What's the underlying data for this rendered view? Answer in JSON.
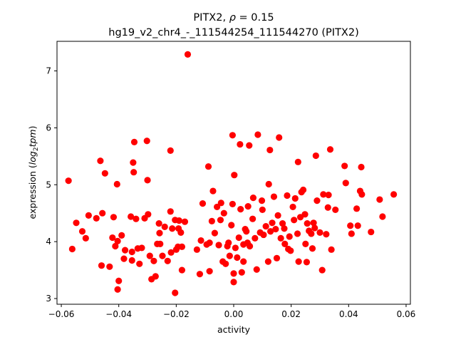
{
  "chart_data": {
    "type": "scatter",
    "title_main": "PITX2, ",
    "title_rho_symbol": "ρ",
    "title_rho_value": " = 0.15",
    "subtitle": "hg19_v2_chr4_-_111544254_111544270 (PITX2)",
    "xlabel": "activity",
    "ylabel_prefix": "expression (",
    "ylabel_log": "log",
    "ylabel_sub": "2",
    "ylabel_tpm": "tpm",
    "ylabel_suffix": ")",
    "xlim": [
      -0.0615,
      0.0615
    ],
    "ylim": [
      2.9,
      7.52
    ],
    "xticks": [
      -0.06,
      -0.04,
      -0.02,
      0.0,
      0.02,
      0.04,
      0.06
    ],
    "xtick_labels": [
      "−0.06",
      "−0.04",
      "−0.02",
      "0.00",
      "0.02",
      "0.04",
      "0.06"
    ],
    "yticks": [
      3,
      4,
      5,
      6,
      7
    ],
    "ytick_labels": [
      "3",
      "4",
      "5",
      "6",
      "7"
    ],
    "grid": false,
    "marker_color": "#ff0000",
    "points": [
      [
        -0.0575,
        5.07
      ],
      [
        -0.0562,
        3.87
      ],
      [
        -0.0548,
        4.33
      ],
      [
        -0.0527,
        4.18
      ],
      [
        -0.0515,
        4.06
      ],
      [
        -0.0505,
        4.46
      ],
      [
        -0.0478,
        4.41
      ],
      [
        -0.0464,
        5.42
      ],
      [
        -0.046,
        3.58
      ],
      [
        -0.0457,
        4.5
      ],
      [
        -0.0448,
        5.2
      ],
      [
        -0.0432,
        3.56
      ],
      [
        -0.0422,
        4.07
      ],
      [
        -0.0418,
        4.43
      ],
      [
        -0.0412,
        3.92
      ],
      [
        -0.0406,
        5.01
      ],
      [
        -0.0404,
        4.01
      ],
      [
        -0.0404,
        3.16
      ],
      [
        -0.04,
        3.31
      ],
      [
        -0.039,
        4.11
      ],
      [
        -0.0382,
        3.7
      ],
      [
        -0.0378,
        3.85
      ],
      [
        -0.0358,
        4.44
      ],
      [
        -0.0354,
        3.67
      ],
      [
        -0.0354,
        3.82
      ],
      [
        -0.035,
        5.39
      ],
      [
        -0.0348,
        5.22
      ],
      [
        -0.0346,
        5.75
      ],
      [
        -0.034,
        4.4
      ],
      [
        -0.0334,
        3.88
      ],
      [
        -0.0328,
        3.61
      ],
      [
        -0.032,
        3.89
      ],
      [
        -0.031,
        4.41
      ],
      [
        -0.0302,
        5.77
      ],
      [
        -0.03,
        5.08
      ],
      [
        -0.0298,
        4.48
      ],
      [
        -0.0292,
        3.75
      ],
      [
        -0.0286,
        3.34
      ],
      [
        -0.0278,
        3.66
      ],
      [
        -0.0272,
        3.39
      ],
      [
        -0.0266,
        3.96
      ],
      [
        -0.026,
        4.32
      ],
      [
        -0.0258,
        4.15
      ],
      [
        -0.0256,
        3.96
      ],
      [
        -0.0248,
        3.75
      ],
      [
        -0.024,
        4.26
      ],
      [
        -0.023,
        3.66
      ],
      [
        -0.022,
        5.6
      ],
      [
        -0.022,
        4.53
      ],
      [
        -0.0218,
        3.81
      ],
      [
        -0.0214,
        4.23
      ],
      [
        -0.0204,
        4.38
      ],
      [
        -0.0204,
        3.1
      ],
      [
        -0.02,
        3.86
      ],
      [
        -0.0194,
        3.91
      ],
      [
        -0.0192,
        4.23
      ],
      [
        -0.019,
        4.37
      ],
      [
        -0.0184,
        4.16
      ],
      [
        -0.018,
        3.91
      ],
      [
        -0.018,
        3.5
      ],
      [
        -0.017,
        4.35
      ],
      [
        -0.016,
        7.29
      ],
      [
        -0.0128,
        3.86
      ],
      [
        -0.0118,
        3.43
      ],
      [
        -0.0114,
        4.02
      ],
      [
        -0.0108,
        4.67
      ],
      [
        -0.0094,
        3.95
      ],
      [
        -0.0088,
        5.32
      ],
      [
        -0.0084,
        3.98
      ],
      [
        -0.0084,
        3.48
      ],
      [
        -0.0076,
        4.36
      ],
      [
        -0.0072,
        4.89
      ],
      [
        -0.0066,
        4.15
      ],
      [
        -0.0058,
        4.61
      ],
      [
        -0.0052,
        3.94
      ],
      [
        -0.0046,
        4.38
      ],
      [
        -0.0044,
        4.68
      ],
      [
        -0.0038,
        3.65
      ],
      [
        -0.0034,
        4.5
      ],
      [
        -0.0028,
        3.61
      ],
      [
        -0.0022,
        3.92
      ],
      [
        -0.0018,
        3.98
      ],
      [
        -0.0014,
        3.75
      ],
      [
        -0.0008,
        4.29
      ],
      [
        -0.0004,
        5.87
      ],
      [
        -0.0004,
        4.66
      ],
      [
        0.0,
        3.44
      ],
      [
        0.0,
        3.29
      ],
      [
        0.0002,
        5.17
      ],
      [
        0.0006,
        3.89
      ],
      [
        0.0012,
        3.72
      ],
      [
        0.0018,
        4.07
      ],
      [
        0.0022,
        5.71
      ],
      [
        0.0024,
        4.57
      ],
      [
        0.0028,
        3.46
      ],
      [
        0.0034,
        3.95
      ],
      [
        0.0034,
        3.65
      ],
      [
        0.004,
        4.22
      ],
      [
        0.0044,
        4.18
      ],
      [
        0.0048,
        3.98
      ],
      [
        0.005,
        4.62
      ],
      [
        0.0054,
        5.69
      ],
      [
        0.0056,
        3.92
      ],
      [
        0.0066,
        4.4
      ],
      [
        0.0068,
        4.77
      ],
      [
        0.0074,
        4.06
      ],
      [
        0.008,
        3.51
      ],
      [
        0.0084,
        5.88
      ],
      [
        0.0092,
        4.16
      ],
      [
        0.0098,
        4.72
      ],
      [
        0.01,
        4.56
      ],
      [
        0.0104,
        4.12
      ],
      [
        0.0112,
        4.27
      ],
      [
        0.012,
        3.65
      ],
      [
        0.0122,
        5.01
      ],
      [
        0.0126,
        5.61
      ],
      [
        0.0128,
        4.18
      ],
      [
        0.0134,
        4.33
      ],
      [
        0.014,
        4.79
      ],
      [
        0.0146,
        4.22
      ],
      [
        0.015,
        3.71
      ],
      [
        0.0154,
        4.46
      ],
      [
        0.0158,
        5.83
      ],
      [
        0.0164,
        4.06
      ],
      [
        0.017,
        4.32
      ],
      [
        0.0176,
        4.23
      ],
      [
        0.0178,
        3.96
      ],
      [
        0.0186,
        4.81
      ],
      [
        0.019,
        3.87
      ],
      [
        0.0194,
        4.09
      ],
      [
        0.0198,
        3.84
      ],
      [
        0.0206,
        4.61
      ],
      [
        0.021,
        4.38
      ],
      [
        0.0214,
        4.76
      ],
      [
        0.0222,
        4.14
      ],
      [
        0.0224,
        5.4
      ],
      [
        0.0226,
        3.65
      ],
      [
        0.0232,
        4.43
      ],
      [
        0.0236,
        4.87
      ],
      [
        0.0242,
        4.91
      ],
      [
        0.0248,
        4.48
      ],
      [
        0.025,
        3.96
      ],
      [
        0.0254,
        3.64
      ],
      [
        0.0256,
        4.32
      ],
      [
        0.0262,
        4.19
      ],
      [
        0.027,
        4.14
      ],
      [
        0.0274,
        3.88
      ],
      [
        0.0278,
        4.33
      ],
      [
        0.0282,
        4.24
      ],
      [
        0.0286,
        5.51
      ],
      [
        0.029,
        4.72
      ],
      [
        0.03,
        4.16
      ],
      [
        0.0308,
        3.5
      ],
      [
        0.0312,
        4.83
      ],
      [
        0.0322,
        4.13
      ],
      [
        0.0328,
        4.6
      ],
      [
        0.033,
        4.82
      ],
      [
        0.0336,
        5.62
      ],
      [
        0.034,
        3.86
      ],
      [
        0.0354,
        4.56
      ],
      [
        0.0386,
        5.33
      ],
      [
        0.039,
        5.03
      ],
      [
        0.0406,
        4.28
      ],
      [
        0.041,
        4.14
      ],
      [
        0.0428,
        4.58
      ],
      [
        0.0432,
        4.28
      ],
      [
        0.044,
        4.89
      ],
      [
        0.0444,
        5.31
      ],
      [
        0.0446,
        4.83
      ],
      [
        0.0478,
        4.17
      ],
      [
        0.0508,
        4.74
      ],
      [
        0.0518,
        4.44
      ],
      [
        0.0557,
        4.83
      ]
    ]
  }
}
